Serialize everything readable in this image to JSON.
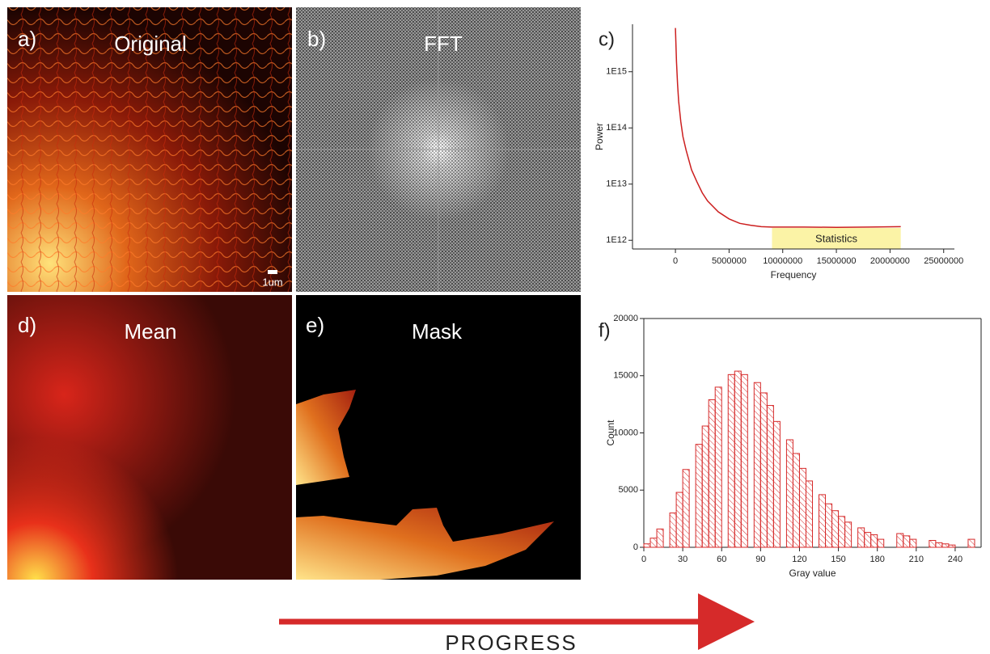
{
  "panels": [
    {
      "letter": "a)",
      "title": "Original",
      "scale_bar": "1um"
    },
    {
      "letter": "b)",
      "title": "FFT"
    },
    {
      "letter": "d)",
      "title": "Mean"
    },
    {
      "letter": "e)",
      "title": "Mask"
    }
  ],
  "arrow_label": "PROGRESS",
  "chart_data": [
    {
      "type": "line",
      "panel_label": "c)",
      "x_label": "Frequency",
      "y_label": "Power",
      "log_y": true,
      "color": "#cc1f1f",
      "x": [
        0,
        100000,
        200000,
        300000,
        500000,
        700000,
        1000000,
        1500000,
        2000000,
        2500000,
        3000000,
        4000000,
        5000000,
        6000000,
        7000000,
        8000000,
        9000000,
        12000000,
        15000000,
        18000000,
        21000000
      ],
      "values": [
        6000000000000000.0,
        1500000000000000.0,
        600000000000000.0,
        300000000000000.0,
        130000000000000.0,
        70000000000000.0,
        40000000000000.0,
        18000000000000.0,
        11000000000000.0,
        7000000000000.0,
        5000000000000.0,
        3200000000000.0,
        2400000000000.0,
        2000000000000.0,
        1850000000000.0,
        1750000000000.0,
        1720000000000.0,
        1720000000000.0,
        1700000000000.0,
        1720000000000.0,
        1750000000000.0
      ],
      "xlim": [
        -4000000,
        26000000
      ],
      "xticks": [
        0,
        5000000,
        10000000,
        15000000,
        20000000,
        25000000
      ],
      "ylim": [
        700000000000.0,
        7000000000000000.0
      ],
      "yticks": [
        {
          "value": 1000000000000.0,
          "label": "1E12"
        },
        {
          "value": 10000000000000.0,
          "label": "1E13"
        },
        {
          "value": 100000000000000.0,
          "label": "1E14"
        },
        {
          "value": 1000000000000000.0,
          "label": "1E15"
        }
      ],
      "region": {
        "label": "Statistics",
        "xlim": [
          9000000,
          21000000
        ],
        "color": "#fbf3a6"
      }
    },
    {
      "type": "histogram",
      "panel_label": "f)",
      "x_label": "Gray value",
      "y_label": "Count",
      "color": "#d62a2a",
      "bins": [
        0,
        5,
        10,
        15,
        20,
        25,
        30,
        35,
        40,
        45,
        50,
        55,
        60,
        65,
        70,
        75,
        80,
        85,
        90,
        95,
        100,
        105,
        110,
        115,
        120,
        125,
        130,
        135,
        140,
        145,
        150,
        155,
        160,
        165,
        170,
        175,
        180,
        185,
        190,
        195,
        200,
        205,
        210,
        215,
        220,
        225,
        230,
        235,
        240,
        245,
        250,
        255
      ],
      "values": [
        300,
        800,
        1600,
        0,
        3000,
        4800,
        6800,
        0,
        9000,
        10600,
        12900,
        14000,
        0,
        15100,
        15400,
        15100,
        0,
        14400,
        13500,
        12400,
        11000,
        0,
        9400,
        8200,
        6900,
        5800,
        0,
        4600,
        3800,
        3200,
        2700,
        2200,
        0,
        1700,
        1300,
        1100,
        700,
        0,
        0,
        1200,
        1000,
        700,
        0,
        0,
        600,
        400,
        300,
        200,
        0,
        0,
        700
      ],
      "xlim": [
        0,
        260
      ],
      "xticks": [
        0,
        30,
        60,
        90,
        120,
        150,
        180,
        210,
        240
      ],
      "ylim": [
        0,
        20000
      ],
      "yticks": [
        0,
        5000,
        10000,
        15000,
        20000
      ]
    }
  ]
}
